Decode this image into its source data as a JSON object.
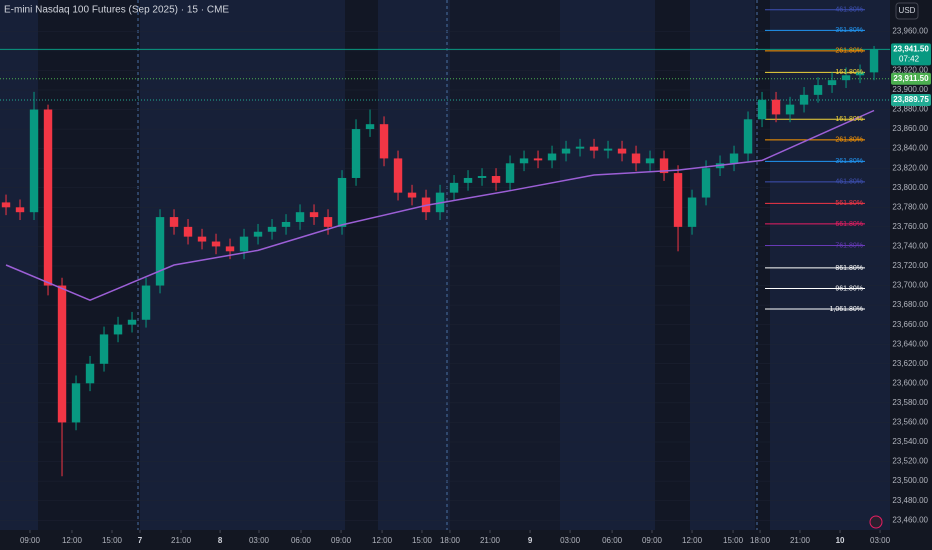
{
  "chart_data": {
    "type": "candlestick",
    "title": "E-mini Nasdaq 100 Futures (Sep 2025) · 15 · CME",
    "currency": "USD",
    "up_color": "#089981",
    "down_color": "#f23645",
    "open": [
      23785,
      23780,
      23775,
      23880,
      23700,
      23560,
      23600,
      23620,
      23650,
      23660,
      23665,
      23700,
      23770,
      23760,
      23750,
      23745,
      23740,
      23735,
      23750,
      23755,
      23760,
      23765,
      23775,
      23770,
      23760,
      23810,
      23860,
      23865,
      23830,
      23795,
      23790,
      23775,
      23795,
      23805,
      23810,
      23812,
      23805,
      23825,
      23830,
      23828,
      23835,
      23840,
      23842,
      23838,
      23840,
      23835,
      23825,
      23830,
      23815,
      23760,
      23790,
      23820,
      23825,
      23835,
      23870,
      23890,
      23875,
      23885,
      23895,
      23905,
      23910,
      23915,
      23918
    ],
    "high": [
      23793,
      23788,
      23898,
      23885,
      23708,
      23608,
      23628,
      23658,
      23668,
      23673,
      23708,
      23778,
      23778,
      23768,
      23758,
      23753,
      23748,
      23758,
      23763,
      23768,
      23773,
      23783,
      23783,
      23778,
      23818,
      23870,
      23880,
      23873,
      23838,
      23803,
      23798,
      23803,
      23813,
      23818,
      23820,
      23820,
      23833,
      23838,
      23838,
      23843,
      23848,
      23850,
      23850,
      23848,
      23848,
      23843,
      23838,
      23838,
      23823,
      23798,
      23828,
      23833,
      23843,
      23878,
      23898,
      23898,
      23893,
      23903,
      23913,
      23918,
      23923,
      23926,
      23945
    ],
    "low": [
      23772,
      23767,
      23767,
      23690,
      23505,
      23552,
      23592,
      23612,
      23642,
      23652,
      23657,
      23692,
      23752,
      23742,
      23737,
      23732,
      23727,
      23727,
      23742,
      23747,
      23752,
      23757,
      23762,
      23752,
      23752,
      23802,
      23852,
      23822,
      23787,
      23782,
      23767,
      23767,
      23787,
      23797,
      23802,
      23797,
      23797,
      23817,
      23820,
      23820,
      23827,
      23832,
      23830,
      23830,
      23827,
      23817,
      23817,
      23807,
      23735,
      23752,
      23782,
      23812,
      23817,
      23827,
      23862,
      23867,
      23867,
      23877,
      23887,
      23897,
      23902,
      23907,
      23910
    ],
    "close": [
      23780,
      23775,
      23880,
      23700,
      23560,
      23600,
      23620,
      23650,
      23660,
      23665,
      23700,
      23770,
      23760,
      23750,
      23745,
      23740,
      23735,
      23750,
      23755,
      23760,
      23765,
      23775,
      23770,
      23760,
      23810,
      23860,
      23865,
      23830,
      23795,
      23790,
      23775,
      23795,
      23805,
      23810,
      23812,
      23805,
      23825,
      23830,
      23828,
      23835,
      23840,
      23842,
      23838,
      23840,
      23835,
      23825,
      23830,
      23815,
      23760,
      23790,
      23820,
      23825,
      23835,
      23870,
      23890,
      23875,
      23885,
      23895,
      23905,
      23910,
      23915,
      23918,
      23941.5
    ],
    "lines": [
      {
        "color": "#9c5fd6",
        "x": [
          0,
          6,
          12,
          18,
          24,
          30,
          36,
          42,
          48,
          54,
          62
        ],
        "values": [
          23721,
          23685,
          23721,
          23736,
          23762,
          23782,
          23797,
          23813,
          23818,
          23828,
          23879
        ]
      }
    ],
    "xlim": [
      -0.43,
      63.14
    ],
    "xticks": [
      {
        "value": 1.71,
        "label": "09:00"
      },
      {
        "value": 4.71,
        "label": "12:00"
      },
      {
        "value": 7.57,
        "label": "15:00"
      },
      {
        "value": 9.57,
        "label": "7"
      },
      {
        "value": 12.5,
        "label": "21:00"
      },
      {
        "value": 15.29,
        "label": "8"
      },
      {
        "value": 18.07,
        "label": "03:00"
      },
      {
        "value": 21.07,
        "label": "06:00"
      },
      {
        "value": 23.93,
        "label": "09:00"
      },
      {
        "value": 26.86,
        "label": "12:00"
      },
      {
        "value": 29.71,
        "label": "15:00"
      },
      {
        "value": 31.71,
        "label": "18:00"
      },
      {
        "value": 34.57,
        "label": "21:00"
      },
      {
        "value": 37.43,
        "label": "9"
      },
      {
        "value": 40.29,
        "label": "03:00"
      },
      {
        "value": 43.29,
        "label": "06:00"
      },
      {
        "value": 46.14,
        "label": "09:00"
      },
      {
        "value": 49,
        "label": "12:00"
      },
      {
        "value": 51.93,
        "label": "15:00"
      },
      {
        "value": 53.86,
        "label": "18:00"
      },
      {
        "value": 56.71,
        "label": "21:00"
      },
      {
        "value": 59.57,
        "label": "10"
      },
      {
        "value": 62.43,
        "label": "03:00"
      }
    ],
    "ylim": [
      23450,
      23992
    ],
    "yticks": [
      {
        "value": 23460,
        "label": "23,460.00"
      },
      {
        "value": 23480,
        "label": "23,480.00"
      },
      {
        "value": 23500,
        "label": "23,500.00"
      },
      {
        "value": 23520,
        "label": "23,520.00"
      },
      {
        "value": 23540,
        "label": "23,540.00"
      },
      {
        "value": 23560,
        "label": "23,560.00"
      },
      {
        "value": 23580,
        "label": "23,580.00"
      },
      {
        "value": 23600,
        "label": "23,600.00"
      },
      {
        "value": 23620,
        "label": "23,620.00"
      },
      {
        "value": 23640,
        "label": "23,640.00"
      },
      {
        "value": 23660,
        "label": "23,660.00"
      },
      {
        "value": 23680,
        "label": "23,680.00"
      },
      {
        "value": 23700,
        "label": "23,700.00"
      },
      {
        "value": 23720,
        "label": "23,720.00"
      },
      {
        "value": 23740,
        "label": "23,740.00"
      },
      {
        "value": 23760,
        "label": "23,760.00"
      },
      {
        "value": 23780,
        "label": "23,780.00"
      },
      {
        "value": 23800,
        "label": "23,800.00"
      },
      {
        "value": 23820,
        "label": "23,820.00"
      },
      {
        "value": 23840,
        "label": "23,840.00"
      },
      {
        "value": 23860,
        "label": "23,860.00"
      },
      {
        "value": 23880,
        "label": "23,880.00"
      },
      {
        "value": 23900,
        "label": "23,900.00"
      },
      {
        "value": 23920,
        "label": "23,920.00"
      },
      {
        "value": 23940,
        "label": "23,940.00"
      },
      {
        "value": 23960,
        "label": "23,960.00"
      }
    ],
    "fib_levels": [
      {
        "label": "461.80%",
        "price": 23982,
        "color": "#3f51b5"
      },
      {
        "label": "361.80%",
        "price": 23961,
        "color": "#2196f3"
      },
      {
        "label": "261.80%",
        "price": 23940,
        "color": "#ff9800"
      },
      {
        "label": "161.80%",
        "price": 23918,
        "color": "#f2d43a"
      },
      {
        "label": "161.80%",
        "price": 23870,
        "color": "#f2d43a"
      },
      {
        "label": "261.80%",
        "price": 23849,
        "color": "#ff9800"
      },
      {
        "label": "361.80%",
        "price": 23827,
        "color": "#2196f3"
      },
      {
        "label": "461.80%",
        "price": 23806,
        "color": "#3f51b5"
      },
      {
        "label": "561.80%",
        "price": 23784,
        "color": "#f23645"
      },
      {
        "label": "661.80%",
        "price": 23763,
        "color": "#e91e63"
      },
      {
        "label": "761.80%",
        "price": 23741,
        "color": "#673ab7"
      },
      {
        "label": "861.80%",
        "price": 23718,
        "color": "#ffffff"
      },
      {
        "label": "961.80%",
        "price": 23697,
        "color": "#ffffff"
      },
      {
        "label": "1,061.80%",
        "price": 23676,
        "color": "#ffffff"
      }
    ],
    "price_markers": [
      {
        "value": 23941.5,
        "label": "23,941.50",
        "color": "#089981",
        "style": "solid"
      },
      {
        "value": 23911.5,
        "label": "23,911.50",
        "color": "#4caf50",
        "style": "dotted"
      },
      {
        "value": 23889.75,
        "label": "23,889.75",
        "color": "#22ab94",
        "style": "dotted"
      }
    ],
    "countdown": "07:42"
  }
}
